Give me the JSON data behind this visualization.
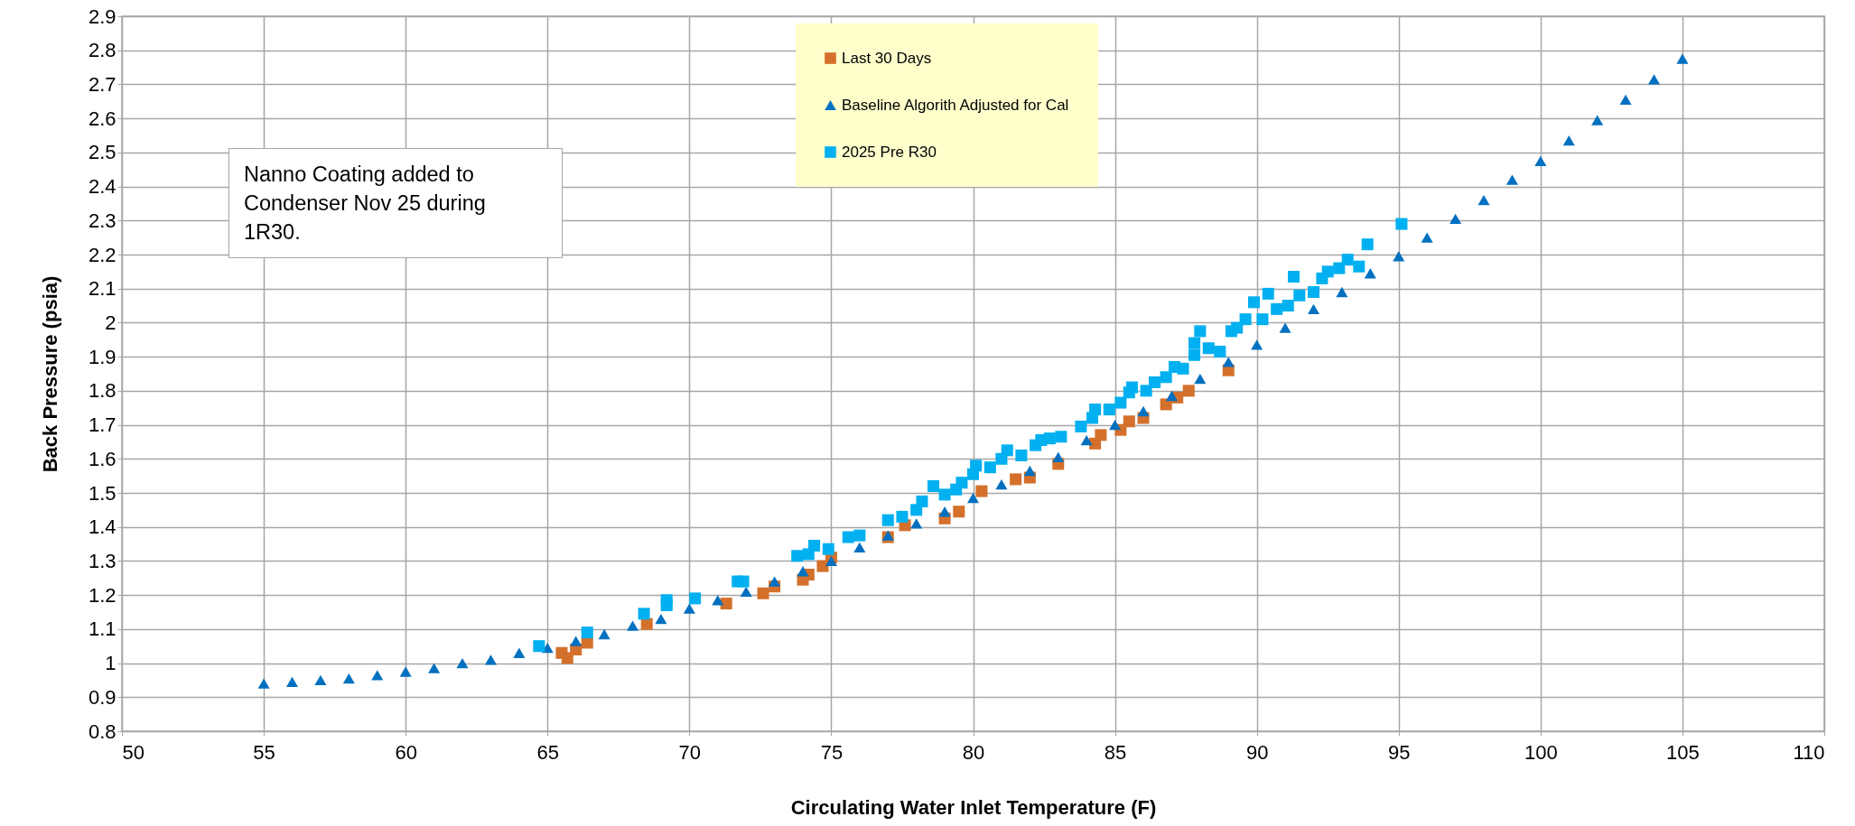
{
  "chart_data": {
    "type": "scatter",
    "xlabel": "Circulating Water Inlet Temperature (F)",
    "ylabel": "Back Pressure (psia)",
    "xlim": [
      50,
      110
    ],
    "xticks": [
      50,
      55,
      60,
      65,
      70,
      75,
      80,
      85,
      90,
      95,
      100,
      105,
      110
    ],
    "ylim": [
      0.8,
      2.9
    ],
    "yticks": [
      0.8,
      0.9,
      1,
      1.1,
      1.2,
      1.3,
      1.4,
      1.5,
      1.6,
      1.7,
      1.8,
      1.9,
      2,
      2.1,
      2.2,
      2.3,
      2.4,
      2.5,
      2.6,
      2.7,
      2.8,
      2.9
    ],
    "grid": true,
    "legend": "top",
    "annotations": [
      "Nanno Coating added to Condenser Nov 25 during 1R30."
    ],
    "series": [
      {
        "name": "Last 30 Days",
        "color": "#d4702b",
        "marker": "square",
        "x": [
          65.5,
          65.7,
          66,
          66.4,
          68.5,
          71.3,
          72.6,
          73,
          74,
          74.2,
          74.7,
          75,
          77,
          77.6,
          79,
          79.5,
          80.3,
          81.5,
          82,
          83,
          84.3,
          84.5,
          85.2,
          85.5,
          86,
          86.8,
          87.2,
          87.6,
          89
        ],
        "values": [
          1.03,
          1.015,
          1.04,
          1.06,
          1.115,
          1.175,
          1.205,
          1.225,
          1.245,
          1.26,
          1.285,
          1.31,
          1.37,
          1.405,
          1.425,
          1.445,
          1.505,
          1.54,
          1.545,
          1.585,
          1.645,
          1.67,
          1.685,
          1.71,
          1.72,
          1.76,
          1.78,
          1.8,
          1.86
        ]
      },
      {
        "name": "Baseline Algorith Adjusted for Cal",
        "color": "#0070c0",
        "marker": "triangle",
        "x": [
          55,
          56,
          57,
          58,
          59,
          60,
          61,
          62,
          63,
          64,
          65,
          66,
          67,
          68,
          69,
          70,
          71,
          72,
          73,
          74,
          75,
          76,
          77,
          78,
          79,
          80,
          81,
          82,
          83,
          84,
          85,
          86,
          87,
          88,
          89,
          90,
          91,
          92,
          93,
          94,
          95,
          96,
          97,
          98,
          99,
          100,
          101,
          102,
          103,
          104,
          105
        ],
        "values": [
          0.94,
          0.945,
          0.95,
          0.955,
          0.965,
          0.975,
          0.985,
          1.0,
          1.01,
          1.03,
          1.045,
          1.065,
          1.085,
          1.11,
          1.13,
          1.16,
          1.185,
          1.21,
          1.24,
          1.27,
          1.3,
          1.34,
          1.375,
          1.41,
          1.445,
          1.485,
          1.525,
          1.565,
          1.605,
          1.655,
          1.7,
          1.74,
          1.785,
          1.835,
          1.885,
          1.935,
          1.985,
          2.04,
          2.09,
          2.145,
          2.195,
          2.25,
          2.305,
          2.36,
          2.42,
          2.475,
          2.535,
          2.595,
          2.655,
          2.715,
          2.775
        ]
      },
      {
        "name": "2025 Pre R30",
        "color": "#00b0f0",
        "marker": "square",
        "x": [
          64.7,
          66.4,
          68.4,
          69.2,
          69.2,
          70.2,
          71.7,
          71.9,
          73.8,
          74.2,
          74.4,
          74.9,
          75.6,
          76,
          77,
          77.5,
          78,
          78.2,
          78.6,
          79,
          79.4,
          79.6,
          80,
          80.1,
          80.6,
          81,
          81.2,
          81.7,
          82.2,
          82.4,
          82.7,
          83.1,
          83.8,
          84.2,
          84.3,
          84.8,
          85.2,
          85.5,
          85.6,
          86.1,
          86.4,
          86.8,
          87.1,
          87.4,
          87.8,
          87.8,
          88,
          88.3,
          88.7,
          89.1,
          89.3,
          89.6,
          89.9,
          90.2,
          90.4,
          90.7,
          91.1,
          91.3,
          91.5,
          92,
          92.3,
          92.5,
          92.9,
          93.2,
          93.6,
          93.9,
          95.1
        ],
        "values": [
          1.05,
          1.09,
          1.145,
          1.17,
          1.185,
          1.19,
          1.24,
          1.24,
          1.315,
          1.32,
          1.345,
          1.335,
          1.37,
          1.375,
          1.42,
          1.43,
          1.45,
          1.475,
          1.52,
          1.495,
          1.51,
          1.53,
          1.555,
          1.58,
          1.575,
          1.6,
          1.625,
          1.61,
          1.64,
          1.655,
          1.66,
          1.665,
          1.695,
          1.72,
          1.745,
          1.745,
          1.765,
          1.795,
          1.81,
          1.8,
          1.825,
          1.84,
          1.87,
          1.865,
          1.905,
          1.94,
          1.975,
          1.925,
          1.915,
          1.975,
          1.985,
          2.01,
          2.06,
          2.01,
          2.085,
          2.04,
          2.05,
          2.135,
          2.08,
          2.09,
          2.13,
          2.15,
          2.16,
          2.185,
          2.165,
          2.23,
          2.29
        ]
      }
    ]
  }
}
